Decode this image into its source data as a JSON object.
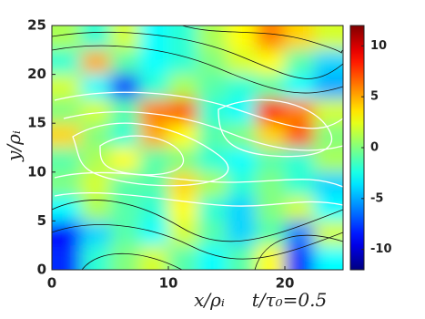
{
  "chart_data": {
    "type": "heatmap",
    "x_label": "x/ρᵢ",
    "y_label": "y/ρᵢ",
    "annotation": "t/τ₀=0.5",
    "x": [
      1.25,
      3.75,
      6.25,
      8.75,
      11.25,
      13.75,
      16.25,
      18.75,
      21.25,
      23.75
    ],
    "y": [
      23.75,
      21.25,
      18.75,
      16.25,
      13.75,
      11.25,
      8.75,
      6.25,
      3.75,
      1.25
    ],
    "z": [
      [
        1,
        -2,
        2,
        -3,
        -2,
        1,
        3,
        6,
        4,
        2
      ],
      [
        -2,
        5,
        -1,
        -3,
        -2,
        0,
        2,
        3,
        -1,
        -4
      ],
      [
        2,
        -3,
        -8,
        -2,
        1,
        -1,
        -2,
        -1,
        -3,
        -5
      ],
      [
        0,
        2,
        -1,
        6,
        7,
        -2,
        -3,
        9,
        6,
        2
      ],
      [
        4,
        0,
        -2,
        5,
        3,
        -1,
        0,
        4,
        7,
        0
      ],
      [
        -1,
        1,
        3,
        -1,
        0,
        -2,
        -3,
        -1,
        -2,
        1
      ],
      [
        0,
        2,
        -1,
        -1,
        4,
        1,
        -2,
        0,
        -2,
        -4
      ],
      [
        -3,
        1,
        -1,
        -2,
        3,
        -2,
        -4,
        0,
        2,
        -3
      ],
      [
        -9,
        -4,
        -1,
        -3,
        2,
        -1,
        -4,
        -1,
        -6,
        2
      ],
      [
        -8,
        -2,
        0,
        2,
        -1,
        -3,
        -1,
        3,
        -8,
        -3
      ]
    ],
    "xlim": [
      0,
      25
    ],
    "ylim": [
      0,
      25
    ],
    "xticks": [
      0,
      10,
      20
    ],
    "yticks": [
      0,
      5,
      10,
      15,
      20,
      25
    ],
    "clim": [
      -12,
      12
    ],
    "cticks": [
      -10,
      -5,
      0,
      5,
      10
    ],
    "colormap": "jet"
  }
}
